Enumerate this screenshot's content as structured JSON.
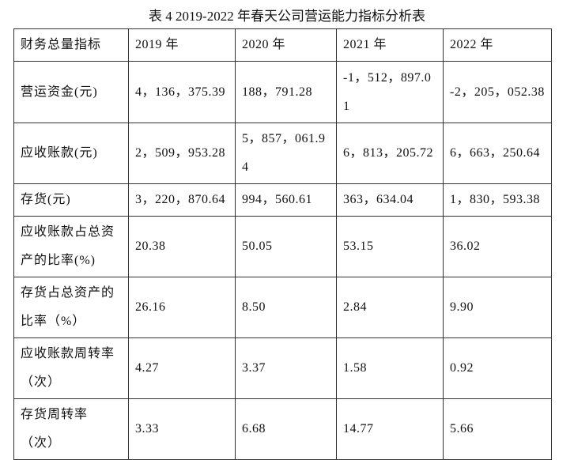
{
  "title": "表 4 2019-2022 年春天公司营运能力指标分析表",
  "table": {
    "header": [
      "财务总量指标",
      "2019 年",
      "2020 年",
      "2021 年",
      "2022 年"
    ],
    "rows": [
      [
        "营运资金(元)",
        "4，136，375.39",
        "188，791.28",
        "-1，512，897.01",
        "-2，205，052.38"
      ],
      [
        "应收账款(元)",
        "2，509，953.28",
        "5，857，061.94",
        "6，813，205.72",
        "6，663，250.64"
      ],
      [
        "存货(元)",
        "3，220，870.64",
        "994，560.61",
        "363，634.04",
        "1，830，593.38"
      ],
      [
        "应收账款占总资产的比率(%)",
        "20.38",
        "50.05",
        "53.15",
        "36.02"
      ],
      [
        "存货占总资产的比率（%）",
        "26.16",
        "8.50",
        "2.84",
        "9.90"
      ],
      [
        "应收账款周转率（次）",
        "4.27",
        "3.37",
        "1.58",
        "0.92"
      ],
      [
        "存货周转率（次）",
        "3.33",
        "6.68",
        "14.77",
        "5.66"
      ]
    ]
  }
}
